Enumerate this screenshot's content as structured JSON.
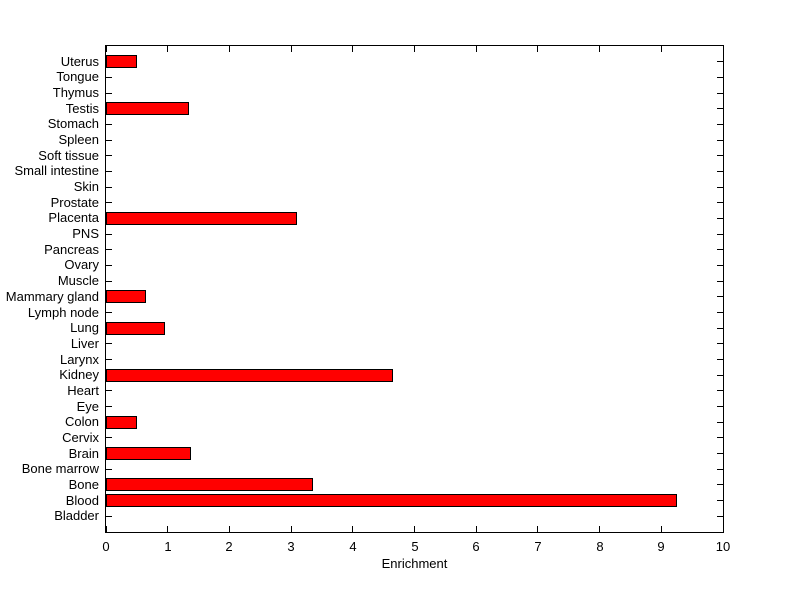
{
  "chart_data": {
    "type": "bar",
    "orientation": "horizontal",
    "title": "",
    "xlabel": "Enrichment",
    "ylabel": "",
    "xlim": [
      0,
      10
    ],
    "xticks": [
      0,
      1,
      2,
      3,
      4,
      5,
      6,
      7,
      8,
      9,
      10
    ],
    "grid": false,
    "legend": "none",
    "bar_color": "#ff0000",
    "bar_edge_color": "#000000",
    "categories": [
      "Uterus",
      "Tongue",
      "Thymus",
      "Testis",
      "Stomach",
      "Spleen",
      "Soft tissue",
      "Small intestine",
      "Skin",
      "Prostate",
      "Placenta",
      "PNS",
      "Pancreas",
      "Ovary",
      "Muscle",
      "Mammary gland",
      "Lymph node",
      "Lung",
      "Liver",
      "Larynx",
      "Kidney",
      "Heart",
      "Eye",
      "Colon",
      "Cervix",
      "Brain",
      "Bone marrow",
      "Bone",
      "Blood",
      "Bladder"
    ],
    "values": [
      0.5,
      0,
      0,
      1.35,
      0,
      0,
      0,
      0,
      0,
      0,
      3.1,
      0,
      0,
      0,
      0,
      0.65,
      0,
      0.95,
      0,
      0,
      4.65,
      0,
      0,
      0.5,
      0,
      1.38,
      0,
      3.35,
      9.25,
      0
    ],
    "category_order_note": "listed top-to-bottom as displayed"
  }
}
